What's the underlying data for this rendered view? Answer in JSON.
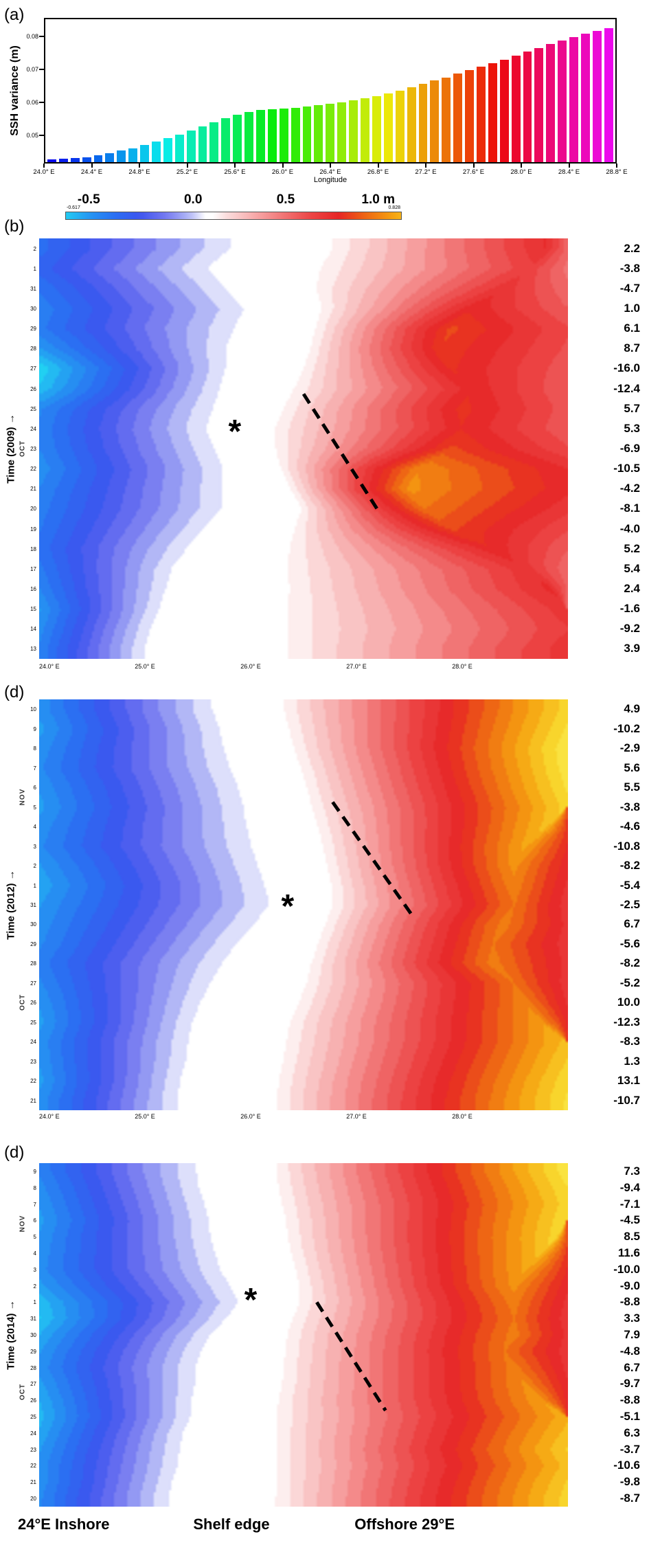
{
  "figure": {
    "bottom_labels": {
      "left": "24°E Inshore",
      "center": "Shelf edge",
      "right": "Offshore  29°E"
    }
  },
  "colors": {
    "colormap": [
      [
        -0.72,
        "#18e8f2"
      ],
      [
        -0.62,
        "#22cdf2"
      ],
      [
        -0.52,
        "#2597f2"
      ],
      [
        -0.4,
        "#2b6df2"
      ],
      [
        -0.3,
        "#3d55ee"
      ],
      [
        -0.2,
        "#6f74f0"
      ],
      [
        -0.12,
        "#9ba1f4"
      ],
      [
        -0.06,
        "#c9ccf8"
      ],
      [
        -0.02,
        "#ffffff"
      ],
      [
        0.02,
        "#ffffff"
      ],
      [
        0.06,
        "#fce4e4"
      ],
      [
        0.13,
        "#f9c6c6"
      ],
      [
        0.22,
        "#f6a0a0"
      ],
      [
        0.32,
        "#f17474"
      ],
      [
        0.44,
        "#ec4545"
      ],
      [
        0.56,
        "#e62525"
      ],
      [
        0.67,
        "#ee6414"
      ],
      [
        0.79,
        "#f5a010"
      ],
      [
        0.89,
        "#f8d228"
      ],
      [
        1.0,
        "#fbf558"
      ]
    ]
  },
  "chart_data": [
    {
      "id": "panel-a",
      "type": "bar",
      "label": "(a)",
      "ylabel": "SSH variance (m)",
      "xlabel": "Longitude",
      "ylim": [
        0.0415,
        0.0855
      ],
      "yticks": [
        0.05,
        0.06,
        0.07,
        0.08
      ],
      "ytick_labels": [
        "0.05",
        "0.06",
        "0.07",
        "0.08"
      ],
      "xtick_labels": [
        "24.0° E",
        "24.4° E",
        "24.8° E",
        "25.2° E",
        "25.6° E",
        "26.0° E",
        "26.4° E",
        "26.8° E",
        "27.2° E",
        "27.6° E",
        "28.0° E",
        "28.4° E",
        "28.8° E"
      ],
      "lon_start": 24.0,
      "lon_step": 0.1,
      "lon_end": 28.8,
      "n_bars": 49,
      "values": [
        0.0424,
        0.0426,
        0.0428,
        0.0431,
        0.0436,
        0.0443,
        0.045,
        0.0458,
        0.0468,
        0.0478,
        0.049,
        0.05,
        0.0512,
        0.0525,
        0.0538,
        0.0551,
        0.0562,
        0.057,
        0.0575,
        0.0578,
        0.058,
        0.0583,
        0.0586,
        0.059,
        0.0594,
        0.0599,
        0.0605,
        0.0612,
        0.0619,
        0.0627,
        0.0636,
        0.0646,
        0.0656,
        0.0666,
        0.0676,
        0.0687,
        0.0698,
        0.0709,
        0.072,
        0.0731,
        0.0743,
        0.0755,
        0.0767,
        0.0779,
        0.079,
        0.08,
        0.081,
        0.082,
        0.0828
      ]
    },
    {
      "id": "panel-b",
      "type": "heatmap",
      "label": "(b)",
      "year": "2009",
      "time_label": "Time  (2009) →",
      "colorbar": {
        "vmin": -0.617,
        "vmax": 0.828,
        "min_label": "-0.617",
        "max_label": "0.828",
        "ticks": [
          {
            "label": "-0.5",
            "pos": 0.07
          },
          {
            "label": "0.0",
            "pos": 0.38
          },
          {
            "label": "0.5",
            "pos": 0.655
          },
          {
            "label": "1.0 m",
            "pos": 0.93
          }
        ]
      },
      "months": [
        {
          "label": "OCT",
          "row": 10.0
        }
      ],
      "dates": [
        "2",
        "1",
        "31",
        "30",
        "29",
        "28",
        "27",
        "26",
        "25",
        "24",
        "23",
        "22",
        "21",
        "20",
        "19",
        "18",
        "17",
        "16",
        "15",
        "14",
        "13"
      ],
      "right_values": [
        "2.2",
        "-3.8",
        "-4.7",
        "1.0",
        "6.1",
        "8.7",
        "-16.0",
        "-12.4",
        "5.7",
        "5.3",
        "-6.9",
        "-10.5",
        "-4.2",
        "-8.1",
        "-4.0",
        "5.2",
        "5.4",
        "2.4",
        "-1.6",
        "-9.2",
        "3.9"
      ],
      "xticks": [
        "24.0° E",
        "25.0° E",
        "26.0° E",
        "27.0° E",
        "28.0° E"
      ],
      "rows": [
        [
          -0.4,
          0.465,
          0.075,
          0.52,
          0.96
        ],
        [
          -0.36,
          0.43,
          0.085,
          0.46,
          0.93
        ],
        [
          -0.42,
          0.445,
          0.065,
          0.5,
          0.88
        ],
        [
          -0.46,
          0.47,
          0.055,
          0.55,
          0.82
        ],
        [
          -0.44,
          0.455,
          0.06,
          0.62,
          0.78
        ],
        [
          -0.52,
          0.44,
          0.065,
          0.6,
          0.76
        ],
        [
          -0.64,
          0.43,
          0.06,
          0.57,
          0.78
        ],
        [
          -0.6,
          0.415,
          0.055,
          0.55,
          0.82
        ],
        [
          -0.48,
          0.4,
          0.05,
          0.58,
          0.8
        ],
        [
          -0.46,
          0.385,
          0.048,
          0.56,
          0.8
        ],
        [
          -0.47,
          0.395,
          0.042,
          0.62,
          0.78
        ],
        [
          -0.5,
          0.41,
          0.04,
          0.74,
          0.72
        ],
        [
          -0.47,
          0.42,
          0.05,
          0.76,
          0.7
        ],
        [
          -0.45,
          0.43,
          0.06,
          0.7,
          0.73
        ],
        [
          -0.43,
          0.405,
          0.07,
          0.62,
          0.78
        ],
        [
          -0.41,
          0.38,
          0.08,
          0.55,
          0.86
        ],
        [
          -0.44,
          0.36,
          0.092,
          0.5,
          0.92
        ],
        [
          -0.47,
          0.355,
          0.1,
          0.53,
          0.97
        ],
        [
          -0.52,
          0.345,
          0.105,
          0.5,
          1.0
        ],
        [
          -0.49,
          0.335,
          0.112,
          0.47,
          1.0
        ],
        [
          -0.46,
          0.33,
          0.118,
          0.5,
          1.0
        ]
      ],
      "asterisk": {
        "symbol": "*",
        "x": 0.37,
        "y": 0.46
      },
      "dash": {
        "x1": 0.5,
        "y1": 0.37,
        "x2": 0.645,
        "y2": 0.655
      }
    },
    {
      "id": "panel-c",
      "type": "heatmap",
      "label": "(d)",
      "year": "2012",
      "time_label": "Time  (2012) →",
      "months": [
        {
          "label": "NOV",
          "row": 4.5
        },
        {
          "label": "OCT",
          "row": 15.0
        }
      ],
      "dates": [
        "10",
        "9",
        "8",
        "7",
        "6",
        "5",
        "4",
        "3",
        "2",
        "1",
        "31",
        "30",
        "29",
        "28",
        "27",
        "26",
        "25",
        "24",
        "23",
        "22",
        "21"
      ],
      "right_values": [
        "4.9",
        "-10.2",
        "-2.9",
        "5.6",
        "5.5",
        "-3.8",
        "-4.6",
        "-10.8",
        "-8.2",
        "-5.4",
        "-2.5",
        "6.7",
        "-5.6",
        "-8.2",
        "-5.2",
        "10.0",
        "-12.3",
        "-8.3",
        "1.3",
        "13.1",
        "-10.7"
      ],
      "xticks": [
        "24.0° E",
        "25.0° E",
        "26.0° E",
        "27.0° E",
        "28.0° E"
      ],
      "rows": [
        [
          -0.5,
          0.4,
          0.052,
          0.9,
          1.0
        ],
        [
          -0.53,
          0.412,
          0.05,
          0.93,
          1.0
        ],
        [
          -0.5,
          0.422,
          0.05,
          0.96,
          1.0
        ],
        [
          -0.48,
          0.435,
          0.05,
          0.95,
          1.0
        ],
        [
          -0.51,
          0.448,
          0.048,
          0.93,
          1.0
        ],
        [
          -0.53,
          0.458,
          0.048,
          0.9,
          1.0
        ],
        [
          -0.5,
          0.468,
          0.05,
          0.85,
          0.96
        ],
        [
          -0.48,
          0.478,
          0.05,
          0.8,
          0.92
        ],
        [
          -0.52,
          0.488,
          0.048,
          0.76,
          0.9
        ],
        [
          -0.55,
          0.498,
          0.046,
          0.73,
          0.9
        ],
        [
          -0.52,
          0.505,
          0.042,
          0.7,
          0.9
        ],
        [
          -0.5,
          0.482,
          0.05,
          0.72,
          0.88
        ],
        [
          -0.48,
          0.458,
          0.06,
          0.7,
          0.86
        ],
        [
          -0.45,
          0.438,
          0.068,
          0.72,
          0.86
        ],
        [
          -0.48,
          0.42,
          0.075,
          0.7,
          0.9
        ],
        [
          -0.51,
          0.402,
          0.078,
          0.73,
          0.92
        ],
        [
          -0.53,
          0.385,
          0.078,
          0.78,
          0.95
        ],
        [
          -0.5,
          0.378,
          0.078,
          0.85,
          1.0
        ],
        [
          -0.51,
          0.372,
          0.078,
          0.88,
          1.0
        ],
        [
          -0.53,
          0.362,
          0.08,
          0.91,
          1.0
        ],
        [
          -0.5,
          0.358,
          0.08,
          0.93,
          1.0
        ]
      ],
      "asterisk": {
        "symbol": "*",
        "x": 0.47,
        "y": 0.505
      },
      "dash": {
        "x1": 0.555,
        "y1": 0.25,
        "x2": 0.705,
        "y2": 0.525
      }
    },
    {
      "id": "panel-d",
      "type": "heatmap",
      "label": "(d)",
      "year": "2014",
      "time_label": "Time  (2014) →",
      "months": [
        {
          "label": "NOV",
          "row": 3.2
        },
        {
          "label": "OCT",
          "row": 13.5
        }
      ],
      "dates": [
        "9",
        "8",
        "7",
        "6",
        "5",
        "4",
        "3",
        "2",
        "1",
        "31",
        "30",
        "29",
        "28",
        "27",
        "26",
        "25",
        "24",
        "23",
        "22",
        "21",
        "20"
      ],
      "right_values": [
        "7.3",
        "-9.4",
        "-7.1",
        "-4.5",
        "8.5",
        "11.6",
        "-10.0",
        "-9.0",
        "-8.8",
        "3.3",
        "7.9",
        "-4.8",
        "6.7",
        "-9.7",
        "-8.8",
        "-5.1",
        "6.3",
        "-3.7",
        "-10.6",
        "-9.8",
        "-8.7"
      ],
      "xticks": [],
      "rows": [
        [
          -0.46,
          0.378,
          0.06,
          0.95,
          1.0
        ],
        [
          -0.49,
          0.382,
          0.06,
          0.92,
          1.0
        ],
        [
          -0.51,
          0.39,
          0.058,
          0.9,
          1.0
        ],
        [
          -0.53,
          0.398,
          0.058,
          0.92,
          1.0
        ],
        [
          -0.51,
          0.402,
          0.058,
          0.9,
          0.98
        ],
        [
          -0.5,
          0.41,
          0.056,
          0.85,
          0.95
        ],
        [
          -0.49,
          0.42,
          0.055,
          0.8,
          0.92
        ],
        [
          -0.53,
          0.432,
          0.05,
          0.76,
          0.9
        ],
        [
          -0.59,
          0.44,
          0.042,
          0.72,
          0.9
        ],
        [
          -0.61,
          0.42,
          0.048,
          0.7,
          0.9
        ],
        [
          -0.56,
          0.4,
          0.058,
          0.72,
          0.9
        ],
        [
          -0.52,
          0.39,
          0.065,
          0.7,
          0.88
        ],
        [
          -0.5,
          0.382,
          0.068,
          0.72,
          0.9
        ],
        [
          -0.53,
          0.38,
          0.068,
          0.75,
          0.92
        ],
        [
          -0.56,
          0.372,
          0.068,
          0.78,
          0.95
        ],
        [
          -0.58,
          0.37,
          0.068,
          0.82,
          1.0
        ],
        [
          -0.55,
          0.362,
          0.075,
          0.85,
          1.0
        ],
        [
          -0.52,
          0.36,
          0.078,
          0.88,
          1.0
        ],
        [
          -0.5,
          0.358,
          0.08,
          0.85,
          1.0
        ],
        [
          -0.5,
          0.352,
          0.085,
          0.88,
          1.0
        ],
        [
          -0.48,
          0.348,
          0.088,
          0.9,
          1.0
        ]
      ],
      "asterisk": {
        "symbol": "*",
        "x": 0.4,
        "y": 0.4
      },
      "dash": {
        "x1": 0.525,
        "y1": 0.405,
        "x2": 0.655,
        "y2": 0.72
      }
    }
  ]
}
